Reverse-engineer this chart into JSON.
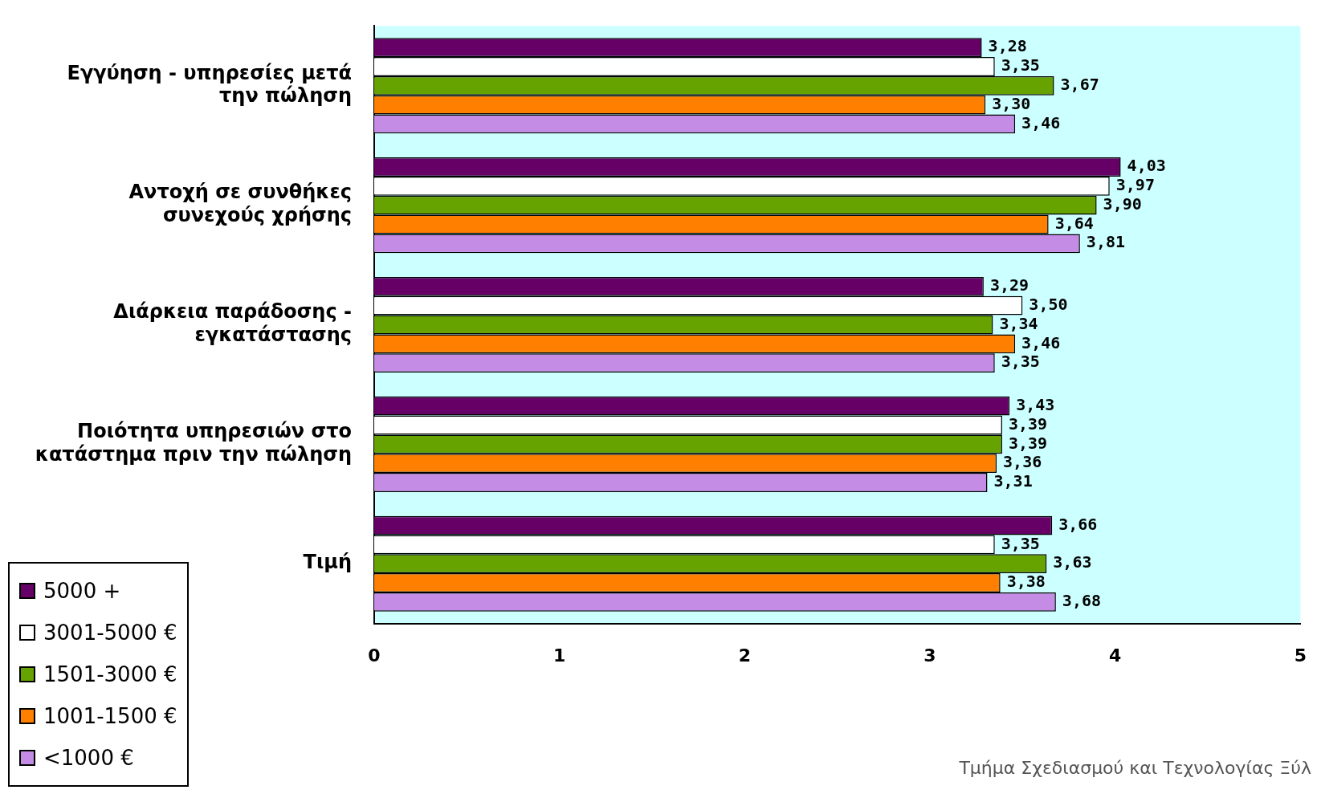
{
  "chart_data": {
    "type": "bar",
    "orientation": "horizontal",
    "categories": [
      "Εγγύηση - υπηρεσίες μετά\nτην πώληση",
      "Αντοχή σε συνθήκες\nσυνεχούς χρήσης",
      "Διάρκεια παράδοσης -\nεγκατάστασης",
      "Ποιότητα υπηρεσιών στο\nκατάστημα πριν την πώληση",
      "Τιμή"
    ],
    "series": [
      {
        "name": "5000 +",
        "color": "#660066",
        "values": [
          3.28,
          4.03,
          3.29,
          3.43,
          3.66
        ],
        "value_labels": [
          "3,28",
          "4,03",
          "3,29",
          "3,43",
          "3,66"
        ]
      },
      {
        "name": "3001-5000 €",
        "color": "#ffffff",
        "values": [
          3.35,
          3.97,
          3.5,
          3.39,
          3.35
        ],
        "value_labels": [
          "3,35",
          "3,97",
          "3,50",
          "3,39",
          "3,35"
        ]
      },
      {
        "name": "1501-3000 €",
        "color": "#66a300",
        "values": [
          3.67,
          3.9,
          3.34,
          3.39,
          3.63
        ],
        "value_labels": [
          "3,67",
          "3,90",
          "3,34",
          "3,39",
          "3,63"
        ]
      },
      {
        "name": "1001-1500 €",
        "color": "#ff8000",
        "values": [
          3.3,
          3.64,
          3.46,
          3.36,
          3.38
        ],
        "value_labels": [
          "3,30",
          "3,64",
          "3,46",
          "3,36",
          "3,38"
        ]
      },
      {
        "name": "<1000 €",
        "color": "#c58ce6",
        "values": [
          3.46,
          3.81,
          3.35,
          3.31,
          3.68
        ],
        "value_labels": [
          "3,46",
          "3,81",
          "3,35",
          "3,31",
          "3,68"
        ]
      }
    ],
    "xlim": [
      0,
      5
    ],
    "xticks": [
      0,
      1,
      2,
      3,
      4,
      5
    ],
    "grid": false,
    "legend": "bottom left",
    "annotations": [
      "Τμήμα Σχεδιασμού και Τεχνολογίας Ξύλ"
    ]
  }
}
